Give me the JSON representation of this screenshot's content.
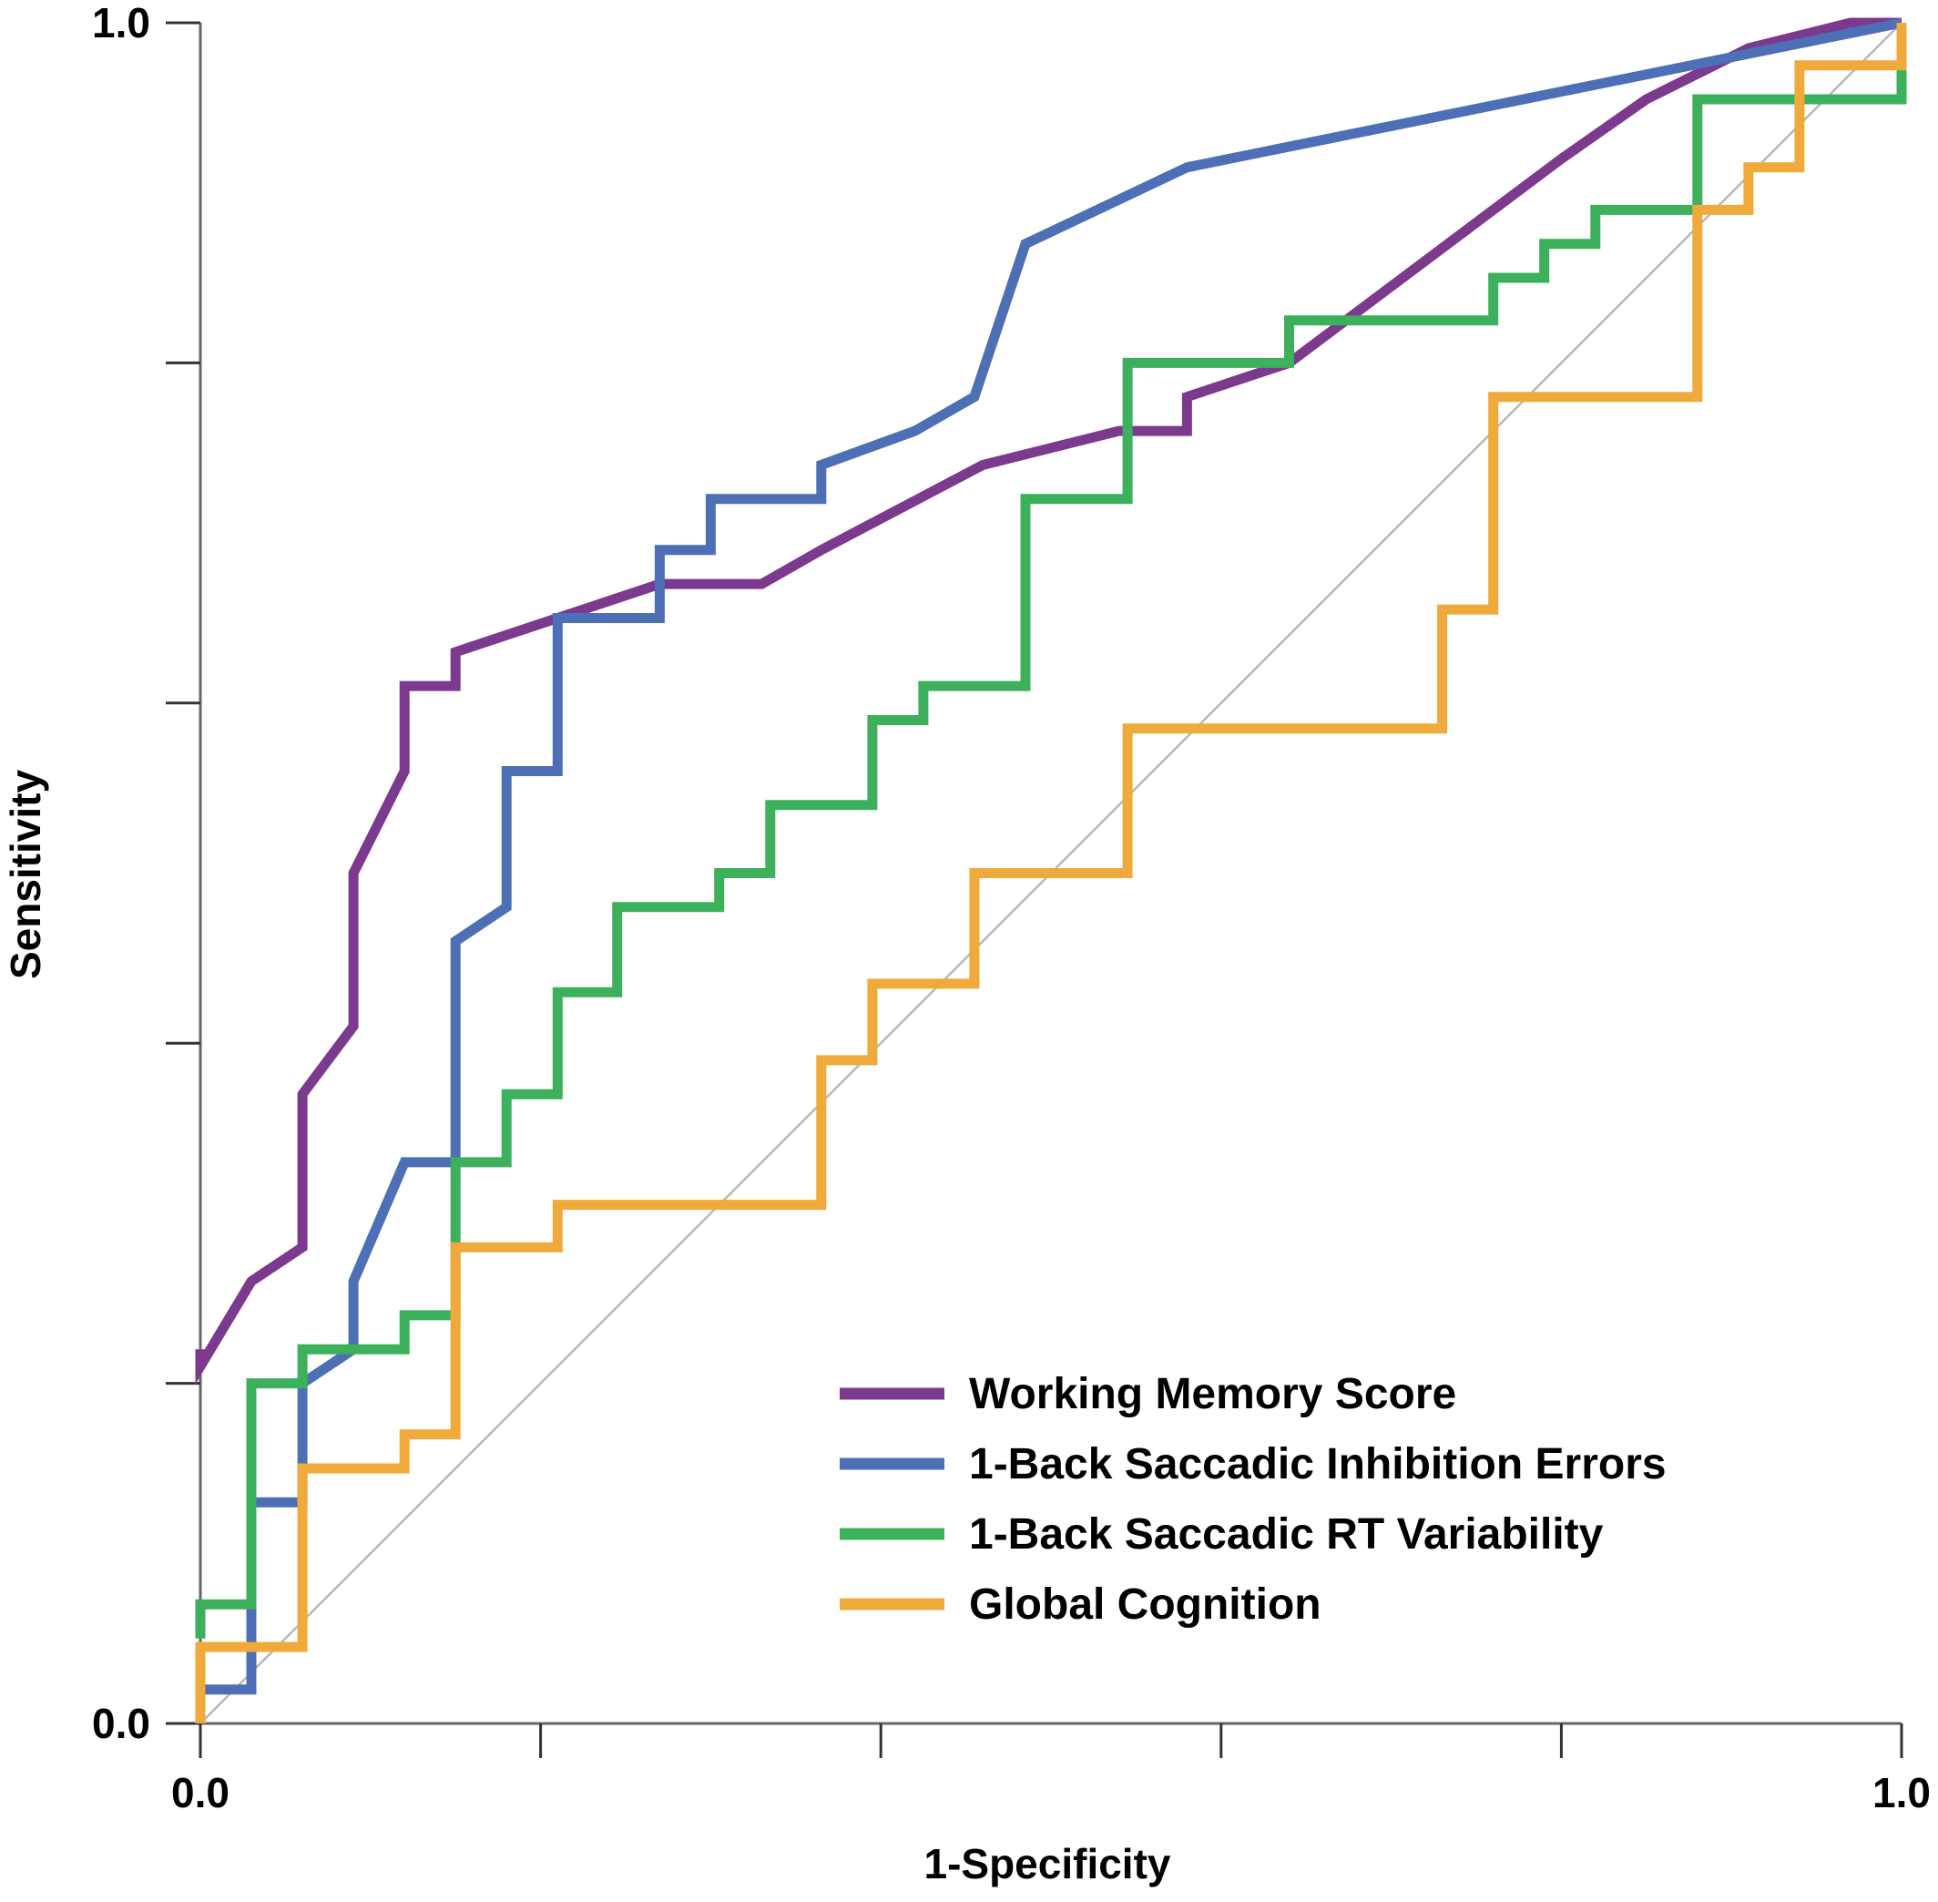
{
  "chart_data": {
    "type": "line",
    "xlabel": "1-Specificity",
    "ylabel": "Sensitivity",
    "xlim": [
      0,
      1
    ],
    "ylim": [
      0,
      1
    ],
    "x_tick_values": [
      0,
      0.2,
      0.4,
      0.6,
      0.8,
      1.0
    ],
    "x_tick_labels": [
      "0.0",
      "",
      "",
      "",
      "",
      "1.0"
    ],
    "y_tick_values": [
      0,
      0.2,
      0.4,
      0.6,
      0.8,
      1.0
    ],
    "y_tick_labels": [
      "0.0",
      "",
      "",
      "",
      "",
      "1.0"
    ],
    "grid": false,
    "legend_position": "bottom-right",
    "reference_line": {
      "type": "diagonal",
      "color": "#b8b8b8"
    },
    "series": [
      {
        "name": "Working Memory Score",
        "color": "#7b3a8e",
        "points": [
          [
            0,
            0.22
          ],
          [
            0,
            0.21
          ],
          [
            0.03,
            0.26
          ],
          [
            0.06,
            0.28
          ],
          [
            0.06,
            0.37
          ],
          [
            0.09,
            0.41
          ],
          [
            0.09,
            0.5
          ],
          [
            0.12,
            0.56
          ],
          [
            0.12,
            0.61
          ],
          [
            0.15,
            0.61
          ],
          [
            0.15,
            0.63
          ],
          [
            0.21,
            0.65
          ],
          [
            0.27,
            0.67
          ],
          [
            0.33,
            0.67
          ],
          [
            0.365,
            0.69
          ],
          [
            0.46,
            0.74
          ],
          [
            0.54,
            0.76
          ],
          [
            0.58,
            0.76
          ],
          [
            0.58,
            0.78
          ],
          [
            0.64,
            0.8
          ],
          [
            0.8,
            0.92
          ],
          [
            0.85,
            0.955
          ],
          [
            0.91,
            0.985
          ],
          [
            0.97,
            1.0
          ],
          [
            1.0,
            1.0
          ]
        ]
      },
      {
        "name": "1-Back Saccadic Inhibition Errors",
        "color": "#4c6fb5",
        "points": [
          [
            0,
            0.02
          ],
          [
            0.03,
            0.02
          ],
          [
            0.03,
            0.13
          ],
          [
            0.06,
            0.13
          ],
          [
            0.06,
            0.2
          ],
          [
            0.09,
            0.22
          ],
          [
            0.09,
            0.26
          ],
          [
            0.12,
            0.33
          ],
          [
            0.15,
            0.33
          ],
          [
            0.15,
            0.46
          ],
          [
            0.18,
            0.48
          ],
          [
            0.18,
            0.56
          ],
          [
            0.21,
            0.56
          ],
          [
            0.21,
            0.65
          ],
          [
            0.27,
            0.65
          ],
          [
            0.27,
            0.69
          ],
          [
            0.3,
            0.69
          ],
          [
            0.3,
            0.72
          ],
          [
            0.365,
            0.72
          ],
          [
            0.365,
            0.74
          ],
          [
            0.42,
            0.76
          ],
          [
            0.455,
            0.78
          ],
          [
            0.485,
            0.87
          ],
          [
            0.58,
            0.915
          ],
          [
            1.0,
            1.0
          ]
        ]
      },
      {
        "name": "1-Back Saccadic RT Variability",
        "color": "#3cb05a",
        "points": [
          [
            0,
            0.05
          ],
          [
            0,
            0.07
          ],
          [
            0.03,
            0.07
          ],
          [
            0.03,
            0.2
          ],
          [
            0.06,
            0.2
          ],
          [
            0.06,
            0.22
          ],
          [
            0.12,
            0.22
          ],
          [
            0.12,
            0.24
          ],
          [
            0.15,
            0.24
          ],
          [
            0.15,
            0.3
          ],
          [
            0.15,
            0.33
          ],
          [
            0.18,
            0.33
          ],
          [
            0.18,
            0.37
          ],
          [
            0.21,
            0.37
          ],
          [
            0.21,
            0.43
          ],
          [
            0.245,
            0.43
          ],
          [
            0.245,
            0.48
          ],
          [
            0.305,
            0.48
          ],
          [
            0.305,
            0.5
          ],
          [
            0.335,
            0.5
          ],
          [
            0.335,
            0.54
          ],
          [
            0.395,
            0.54
          ],
          [
            0.395,
            0.59
          ],
          [
            0.425,
            0.59
          ],
          [
            0.425,
            0.61
          ],
          [
            0.485,
            0.61
          ],
          [
            0.485,
            0.72
          ],
          [
            0.545,
            0.72
          ],
          [
            0.545,
            0.8
          ],
          [
            0.64,
            0.8
          ],
          [
            0.64,
            0.825
          ],
          [
            0.76,
            0.825
          ],
          [
            0.76,
            0.85
          ],
          [
            0.79,
            0.85
          ],
          [
            0.79,
            0.87
          ],
          [
            0.82,
            0.87
          ],
          [
            0.82,
            0.89
          ],
          [
            0.88,
            0.89
          ],
          [
            0.88,
            0.955
          ],
          [
            1.0,
            0.955
          ],
          [
            1.0,
            0.98
          ]
        ]
      },
      {
        "name": "Global Cognition",
        "color": "#f0a93b",
        "points": [
          [
            0,
            0
          ],
          [
            0,
            0.045
          ],
          [
            0.06,
            0.045
          ],
          [
            0.06,
            0.15
          ],
          [
            0.12,
            0.15
          ],
          [
            0.12,
            0.17
          ],
          [
            0.15,
            0.17
          ],
          [
            0.15,
            0.28
          ],
          [
            0.21,
            0.28
          ],
          [
            0.21,
            0.305
          ],
          [
            0.365,
            0.305
          ],
          [
            0.365,
            0.39
          ],
          [
            0.395,
            0.39
          ],
          [
            0.395,
            0.435
          ],
          [
            0.455,
            0.435
          ],
          [
            0.455,
            0.5
          ],
          [
            0.545,
            0.5
          ],
          [
            0.545,
            0.585
          ],
          [
            0.73,
            0.585
          ],
          [
            0.73,
            0.655
          ],
          [
            0.76,
            0.655
          ],
          [
            0.76,
            0.78
          ],
          [
            0.88,
            0.78
          ],
          [
            0.88,
            0.89
          ],
          [
            0.91,
            0.89
          ],
          [
            0.91,
            0.915
          ],
          [
            0.94,
            0.915
          ],
          [
            0.94,
            0.975
          ],
          [
            1.0,
            0.975
          ],
          [
            1.0,
            1.0
          ]
        ]
      }
    ]
  }
}
